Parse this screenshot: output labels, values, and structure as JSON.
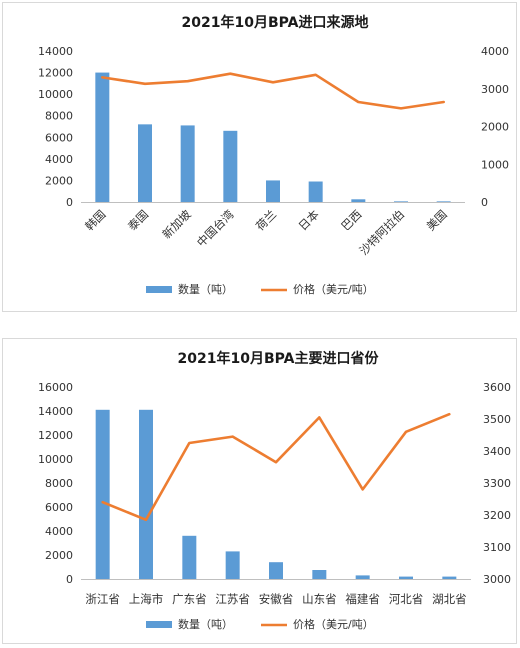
{
  "chart_data": [
    {
      "type": "bar",
      "title": "2021年10月BPA进口来源地",
      "categories": [
        "韩国",
        "泰国",
        "新加坡",
        "中国台湾",
        "荷兰",
        "日本",
        "巴西",
        "沙特阿拉伯",
        "美国"
      ],
      "series": [
        {
          "name": "数量（吨）",
          "type": "bar",
          "axis": "left",
          "color": "#5b9bd5",
          "values": [
            12000,
            7200,
            7100,
            6600,
            2000,
            1900,
            250,
            60,
            60
          ]
        },
        {
          "name": "价格（美元/吨）",
          "type": "line",
          "axis": "right",
          "color": "#ed7d31",
          "values": [
            3300,
            3130,
            3200,
            3400,
            3170,
            3370,
            2650,
            2480,
            2650
          ]
        }
      ],
      "ylim_left": [
        0,
        14000
      ],
      "yticks_left": [
        0,
        2000,
        4000,
        6000,
        8000,
        10000,
        12000,
        14000
      ],
      "ylim_right": [
        0,
        4000
      ],
      "yticks_right": [
        0,
        1000,
        2000,
        3000,
        4000
      ],
      "category_label_rotation": "-45deg",
      "legend": "bottom",
      "grid": false
    },
    {
      "type": "bar",
      "title": "2021年10月BPA主要进口省份",
      "categories": [
        "浙江省",
        "上海市",
        "广东省",
        "江苏省",
        "安徽省",
        "山东省",
        "福建省",
        "河北省",
        "湖北省"
      ],
      "series": [
        {
          "name": "数量（吨）",
          "type": "bar",
          "axis": "left",
          "color": "#5b9bd5",
          "values": [
            14100,
            14100,
            3600,
            2300,
            1400,
            750,
            300,
            200,
            200
          ]
        },
        {
          "name": "价格（美元/吨）",
          "type": "line",
          "axis": "right",
          "color": "#ed7d31",
          "values": [
            3240,
            3185,
            3425,
            3445,
            3365,
            3505,
            3280,
            3460,
            3515
          ]
        }
      ],
      "ylim_left": [
        0,
        16000
      ],
      "yticks_left": [
        0,
        2000,
        4000,
        6000,
        8000,
        10000,
        12000,
        14000,
        16000
      ],
      "ylim_right": [
        3000,
        3600
      ],
      "yticks_right": [
        3000,
        3100,
        3200,
        3300,
        3400,
        3500,
        3600
      ],
      "category_label_rotation": "0deg",
      "legend": "bottom",
      "grid": false
    }
  ]
}
